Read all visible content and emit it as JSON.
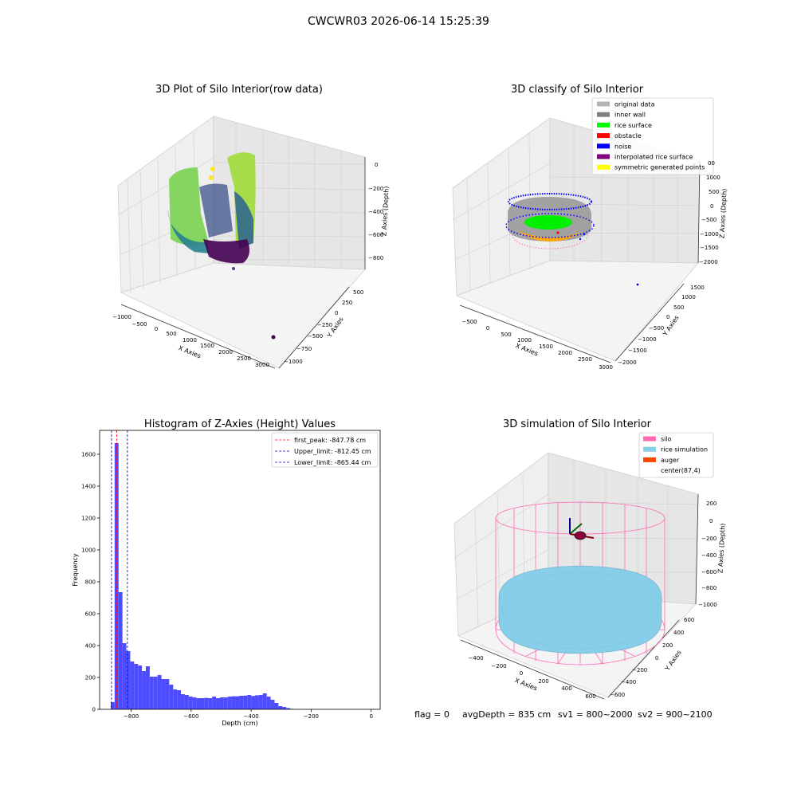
{
  "figure": {
    "suptitle": "CWCWR03 2026-06-14 15:25:39",
    "status": {
      "flag": "flag = 0",
      "avg_depth": "avgDepth = 835 cm",
      "sv1": "sv1 = 800~2000",
      "sv2": "sv2 = 900~2100"
    }
  },
  "chart_data": [
    {
      "type": "scatter",
      "projection": "3d",
      "title": "3D Plot of Silo Interior(row data)",
      "xlabel": "X Axies",
      "ylabel": "Y Axies",
      "zlabel": "Z Axies (Depth)",
      "x_ticks": [
        "−1000",
        "−500",
        "0",
        "500",
        "1000",
        "1500",
        "2000",
        "2500",
        "3000"
      ],
      "y_ticks": [
        "500",
        "250",
        "0",
        "−250",
        "−500",
        "−750",
        "−1000"
      ],
      "z_ticks": [
        "0",
        "−200",
        "−400",
        "−600",
        "−800"
      ],
      "colormap": "viridis",
      "grid": true
    },
    {
      "type": "scatter",
      "projection": "3d",
      "title": "3D classify of Silo Interior",
      "xlabel": "X Axies",
      "ylabel": "Y Axies",
      "zlabel": "Z Axies (Depth)",
      "x_ticks": [
        "−500",
        "0",
        "500",
        "1000",
        "1500",
        "2000",
        "2500",
        "3000"
      ],
      "y_ticks": [
        "1500",
        "1000",
        "500",
        "0",
        "−500",
        "−1000",
        "−1500",
        "−2000"
      ],
      "z_ticks": [
        "1000",
        "500",
        "0",
        "−500",
        "−1000",
        "−1500",
        "−2000"
      ],
      "z_ticks_partial": [
        "00"
      ],
      "legend_position": "top-right",
      "legend": [
        {
          "label": "original data",
          "color": "#b3b3b3"
        },
        {
          "label": "inner wall",
          "color": "#808080"
        },
        {
          "label": "rice surface",
          "color": "#00ff00"
        },
        {
          "label": "obstacle",
          "color": "#ff0000"
        },
        {
          "label": "noise",
          "color": "#0000ff"
        },
        {
          "label": "interpolated rice surface",
          "color": "#800080"
        },
        {
          "label": "symmetric generated points",
          "color": "#ffff00"
        }
      ],
      "grid": true
    },
    {
      "type": "bar",
      "title": "Histogram of Z-Axies (Height) Values",
      "xlabel": "Depth (cm)",
      "ylabel": "Frequency",
      "xlim": [
        -905,
        30
      ],
      "ylim": [
        0,
        1750
      ],
      "x_ticks": [
        -800,
        -600,
        -400,
        -200,
        0
      ],
      "x_tick_labels": [
        "−800",
        "−600",
        "−400",
        "−200",
        "0"
      ],
      "y_ticks": [
        0,
        200,
        400,
        600,
        800,
        1000,
        1200,
        1400,
        1600
      ],
      "bar_color": "#4d4dff",
      "bin_start": -868,
      "bin_width": 13,
      "values": [
        45,
        1670,
        735,
        415,
        365,
        300,
        285,
        275,
        240,
        270,
        205,
        205,
        215,
        190,
        190,
        155,
        125,
        120,
        95,
        90,
        80,
        75,
        70,
        70,
        72,
        70,
        80,
        70,
        75,
        75,
        80,
        82,
        82,
        85,
        86,
        90,
        84,
        88,
        90,
        100,
        80,
        60,
        40,
        20,
        15,
        8,
        3
      ],
      "vlines": [
        {
          "label": "first_peak: -847.78 cm",
          "x": -847.78,
          "color": "#ff0000"
        },
        {
          "label": "Upper_limit: -812.45 cm",
          "x": -812.45,
          "color": "#0000cc"
        },
        {
          "label": "Lower_limit: -865.44 cm",
          "x": -865.44,
          "color": "#0000cc"
        }
      ],
      "legend_position": "top-right"
    },
    {
      "type": "scatter",
      "projection": "3d",
      "title": "3D simulation of Silo Interior",
      "xlabel": "X Axies",
      "ylabel": "Y Axies",
      "zlabel": "Z Axies (Depth)",
      "x_ticks": [
        "−400",
        "−200",
        "0",
        "200",
        "400",
        "600"
      ],
      "y_ticks": [
        "600",
        "400",
        "200",
        "0",
        "−200",
        "−400",
        "−600"
      ],
      "z_ticks": [
        "200",
        "0",
        "−200",
        "−400",
        "−600",
        "−800",
        "−1000"
      ],
      "legend_position": "top-right",
      "legend": [
        {
          "label": "silo",
          "color": "#ff69b4"
        },
        {
          "label": "rice simulation",
          "color": "#87ceeb"
        },
        {
          "label": "auger",
          "color": "#ff4500"
        },
        {
          "label": "center(87,4)",
          "color": ""
        }
      ],
      "grid": true
    }
  ]
}
